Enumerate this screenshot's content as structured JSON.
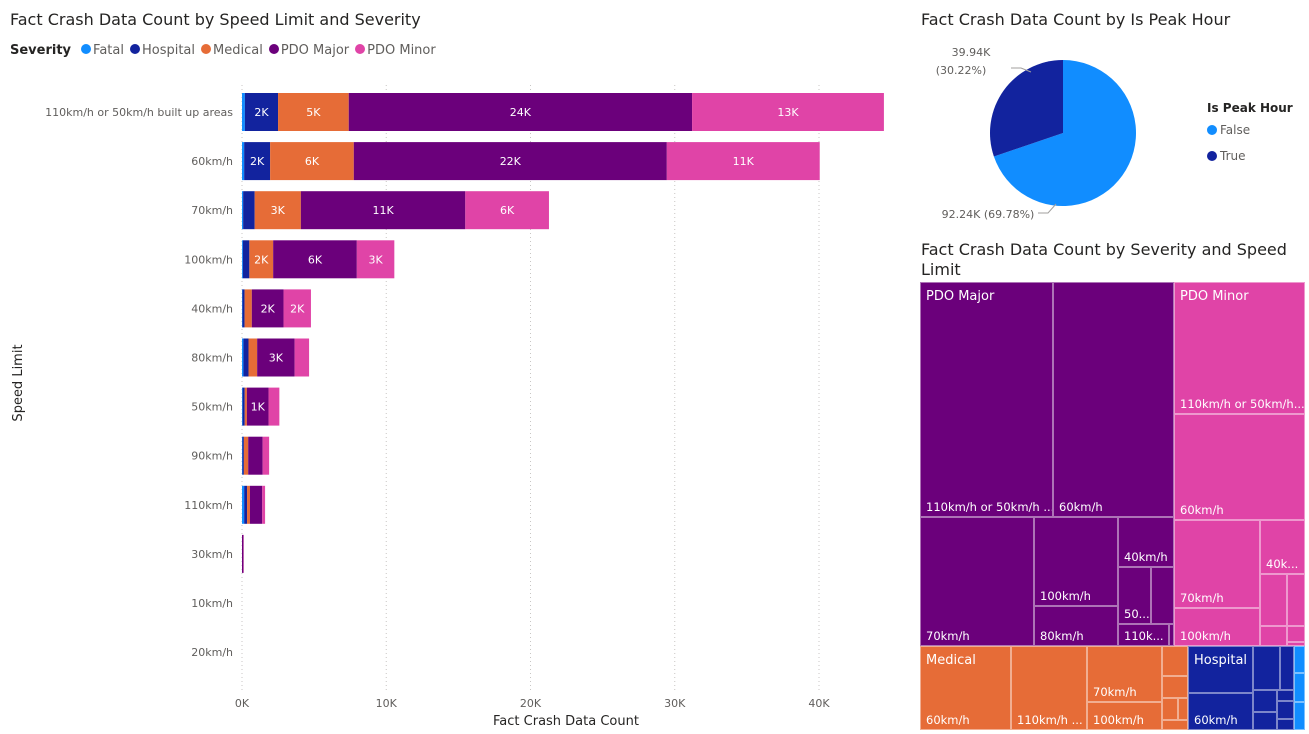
{
  "bar_title": "Fact Crash Data Count by Speed Limit and Severity",
  "pie_title": "Fact Crash Data Count by Is Peak Hour",
  "treemap_title": "Fact Crash Data Count by Severity and Speed Limit",
  "colors": {
    "Fatal": "#118dff",
    "Hospital": "#12239e",
    "Medical": "#e66c37",
    "PDO Major": "#6b007b",
    "PDO Minor": "#e044a7"
  },
  "chart_data": [
    {
      "type": "bar",
      "orientation": "horizontal",
      "stacked": true,
      "title": "Fact Crash Data Count by Speed Limit and Severity",
      "xlabel": "Fact Crash Data Count",
      "ylabel": "Speed Limit",
      "legend_title": "Severity",
      "legend_position": "top-left",
      "xlim": [
        0,
        45000
      ],
      "xticks": [
        "0K",
        "10K",
        "20K",
        "30K",
        "40K"
      ],
      "xtick_values": [
        0,
        10000,
        20000,
        30000,
        40000
      ],
      "grid": true,
      "categories": [
        "110km/h or 50km/h built up areas",
        "60km/h",
        "70km/h",
        "100km/h",
        "40km/h",
        "80km/h",
        "50km/h",
        "90km/h",
        "110km/h",
        "30km/h",
        "10km/h",
        "20km/h"
      ],
      "series": [
        {
          "name": "Fatal",
          "values": [
            200,
            150,
            80,
            60,
            30,
            100,
            40,
            30,
            150,
            0,
            0,
            0
          ]
        },
        {
          "name": "Hospital",
          "values": [
            2300,
            1800,
            800,
            450,
            150,
            350,
            150,
            100,
            200,
            0,
            0,
            0
          ]
        },
        {
          "name": "Medical",
          "values": [
            4900,
            5800,
            3200,
            1650,
            500,
            600,
            150,
            300,
            200,
            0,
            0,
            0
          ]
        },
        {
          "name": "PDO Major",
          "values": [
            23800,
            21700,
            11400,
            5800,
            2200,
            2600,
            1500,
            1000,
            850,
            100,
            0,
            0
          ]
        },
        {
          "name": "PDO Minor",
          "values": [
            13300,
            10600,
            5800,
            2600,
            1900,
            1000,
            750,
            450,
            200,
            20,
            0,
            0
          ]
        }
      ],
      "data_labels": [
        [
          "",
          "2K",
          "5K",
          "24K",
          "13K"
        ],
        [
          "",
          "2K",
          "6K",
          "22K",
          "11K"
        ],
        [
          "",
          "",
          "3K",
          "11K",
          "6K"
        ],
        [
          "",
          "",
          "2K",
          "6K",
          "3K"
        ],
        [
          "",
          "",
          "",
          "2K",
          "2K"
        ],
        [
          "",
          "",
          "",
          "3K",
          ""
        ],
        [
          "",
          "",
          "",
          "1K",
          ""
        ],
        [
          "",
          "",
          "",
          "",
          ""
        ],
        [
          "",
          "",
          "",
          "",
          ""
        ],
        [
          "",
          "",
          "",
          "",
          ""
        ],
        [
          "",
          "",
          "",
          "",
          ""
        ],
        [
          "",
          "",
          "",
          "",
          ""
        ]
      ]
    },
    {
      "type": "pie",
      "title": "Fact Crash Data Count by Is Peak Hour",
      "legend_title": "Is Peak Hour",
      "legend_position": "right",
      "slices": [
        {
          "name": "False",
          "value": 92240,
          "percent": 69.78,
          "label": "92.24K (69.78%)"
        },
        {
          "name": "True",
          "value": 39940,
          "percent": 30.22,
          "label_value": "39.94K",
          "label_pct": "(30.22%)"
        }
      ]
    },
    {
      "type": "treemap",
      "title": "Fact Crash Data Count by Severity and Speed Limit",
      "groups": [
        {
          "name": "PDO Major",
          "labels": [
            "110km/h or 50km/h ...",
            "60km/h",
            "70km/h",
            "100km/h",
            "80km/h",
            "40km/h",
            "50...",
            "110k..."
          ]
        },
        {
          "name": "PDO Minor",
          "labels": [
            "110km/h or 50km/h...",
            "60km/h",
            "70km/h",
            "100km/h",
            "40k..."
          ]
        },
        {
          "name": "Medical",
          "labels": [
            "60km/h",
            "110km/h ...",
            "70km/h",
            "100km/h"
          ]
        },
        {
          "name": "Hospital",
          "labels": [
            "60km/h"
          ]
        },
        {
          "name": "Fatal",
          "labels": []
        }
      ]
    }
  ]
}
